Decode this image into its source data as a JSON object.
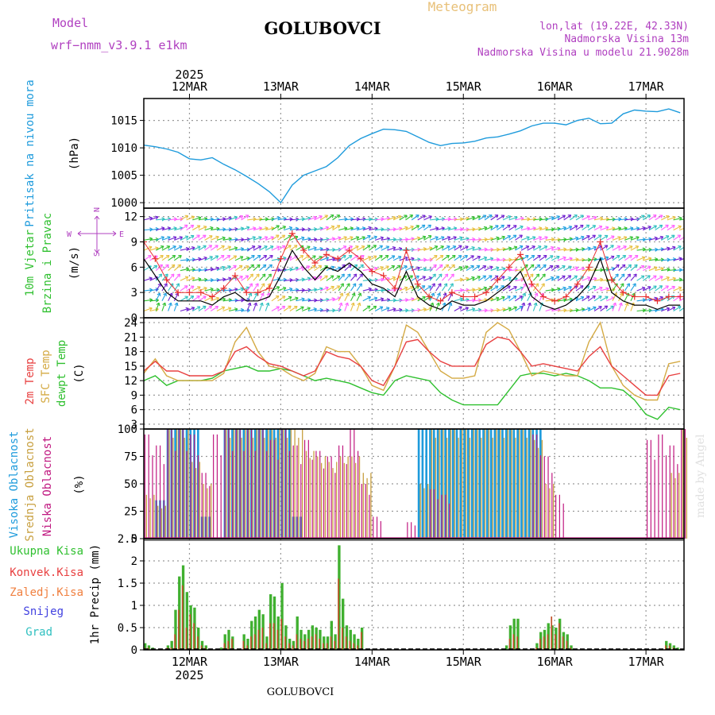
{
  "header": {
    "model_label": "Model",
    "model_name": "wrf−nmm_v3.9.1  e1km",
    "station": "GOLUBOVCI",
    "product": "Meteogram",
    "lonlat": "lon,lat (19.22E, 42.33N)",
    "altitude": "Nadmorska Visina 13m",
    "model_altitude": "Nadmorska Visina u modelu 21.9028m",
    "footer_station": "GOLUBOVCI",
    "watermark": "made by Angel"
  },
  "colors": {
    "pressure": "#1e9bdc",
    "temp2m": "#e84040",
    "sfc": "#d4aa44",
    "dewpt": "#2ec02e",
    "high_cloud": "#1e9bdc",
    "mid_cloud": "#c8a040",
    "low_cloud": "#c01880",
    "total_precip": "#40b030",
    "conv_precip": "#c05028",
    "wind_speed": "#000000",
    "wind_gust": "#e83030"
  },
  "chart_data": [
    {
      "type": "line",
      "id": "pressure",
      "ylabel_lines": [
        "Pritisak na nivou mora",
        "(hPa)"
      ],
      "yticks": [
        "1000",
        "1005",
        "1010",
        "1015"
      ],
      "ylim": [
        999,
        1019
      ],
      "xlim": [
        0,
        142
      ],
      "x_top_labels": [
        "12MAR",
        "13MAR",
        "14MAR",
        "15MAR",
        "16MAR",
        "17MAR"
      ],
      "x_top_year": "2025",
      "x_day_positions": [
        12,
        36,
        60,
        84,
        108,
        132
      ],
      "x": [
        0,
        3,
        6,
        9,
        12,
        15,
        18,
        21,
        24,
        27,
        30,
        33,
        36,
        39,
        42,
        45,
        48,
        51,
        54,
        57,
        60,
        63,
        66,
        69,
        72,
        75,
        78,
        81,
        84,
        87,
        90,
        93,
        96,
        99,
        102,
        105,
        108,
        111,
        114,
        117,
        120,
        123,
        126,
        129,
        132,
        135,
        138,
        141
      ],
      "series": [
        {
          "name": "",
          "values": [
            1010.5,
            1010.2,
            1009.8,
            1009.2,
            1008.0,
            1007.8,
            1008.2,
            1007.0,
            1006.0,
            1004.8,
            1003.5,
            1002.0,
            1000.0,
            1003.2,
            1005.0,
            1005.8,
            1006.6,
            1008.2,
            1010.4,
            1011.7,
            1012.6,
            1013.4,
            1013.3,
            1013.0,
            1012.0,
            1011.0,
            1010.4,
            1010.8,
            1010.9,
            1011.2,
            1011.8,
            1012.0,
            1012.5,
            1013.1,
            1014.0,
            1014.5,
            1014.5,
            1014.2,
            1015.0,
            1015.4,
            1014.4,
            1014.5,
            1016.2,
            1016.9,
            1016.7,
            1016.6,
            1017.1,
            1016.4
          ]
        }
      ]
    },
    {
      "type": "line",
      "id": "wind",
      "ylabel_lines": [
        "10m Vjetar",
        "Brzina i Pravac",
        "(m/s)"
      ],
      "compass": {
        "n": "N",
        "s": "S",
        "w": "W",
        "e": "E"
      },
      "yticks": [
        "0",
        "3",
        "6",
        "9",
        "12"
      ],
      "ylim": [
        0,
        13
      ],
      "xlim": [
        0,
        142
      ],
      "x": [
        0,
        3,
        6,
        9,
        12,
        15,
        18,
        21,
        24,
        27,
        30,
        33,
        36,
        39,
        42,
        45,
        48,
        51,
        54,
        57,
        60,
        63,
        66,
        69,
        72,
        75,
        78,
        81,
        84,
        87,
        90,
        93,
        96,
        99,
        102,
        105,
        108,
        111,
        114,
        117,
        120,
        123,
        126,
        129,
        132,
        135,
        138,
        141
      ],
      "series": [
        {
          "name": "",
          "values": [
            7.0,
            5.0,
            3.0,
            2.0,
            2.0,
            2.0,
            1.5,
            2.5,
            3.0,
            2.0,
            2.0,
            2.5,
            5.0,
            8.0,
            6.0,
            4.5,
            6.0,
            5.5,
            6.5,
            5.5,
            4.0,
            3.5,
            2.5,
            5.5,
            2.5,
            1.5,
            1.0,
            2.0,
            1.5,
            1.5,
            2.0,
            3.0,
            4.0,
            5.5,
            2.5,
            1.5,
            1.0,
            1.5,
            2.5,
            4.0,
            7.0,
            3.0,
            2.0,
            1.5,
            1.5,
            1.0,
            1.5,
            1.5
          ]
        },
        {
          "name": "",
          "values": [
            9.0,
            7.0,
            4.5,
            3.0,
            3.0,
            3.0,
            2.5,
            3.5,
            5.0,
            3.0,
            3.0,
            3.5,
            7.0,
            10.0,
            8.0,
            6.5,
            7.5,
            7.0,
            8.0,
            7.0,
            5.5,
            5.0,
            3.5,
            8.0,
            4.0,
            2.5,
            2.0,
            3.0,
            2.5,
            2.5,
            3.0,
            4.5,
            6.0,
            7.5,
            4.0,
            2.5,
            2.0,
            2.5,
            4.0,
            6.0,
            9.0,
            4.5,
            3.0,
            2.5,
            2.5,
            2.0,
            2.5,
            2.5
          ]
        }
      ],
      "arrow_colors": [
        "#e8c040",
        "#30c030",
        "#20a0e0",
        "#7020d0",
        "#30c0c0",
        "#ff60ff"
      ]
    },
    {
      "type": "line",
      "id": "temperature",
      "ylabel_lines": [
        "2m Temp",
        "SFC Temp",
        "dewpt Temp",
        "(C)"
      ],
      "yticks": [
        "3",
        "6",
        "9",
        "12",
        "15",
        "18",
        "21",
        "24"
      ],
      "ylim": [
        2,
        25
      ],
      "xlim": [
        0,
        142
      ],
      "x": [
        0,
        3,
        6,
        9,
        12,
        15,
        18,
        21,
        24,
        27,
        30,
        33,
        36,
        39,
        42,
        45,
        48,
        51,
        54,
        57,
        60,
        63,
        66,
        69,
        72,
        75,
        78,
        81,
        84,
        87,
        90,
        93,
        96,
        99,
        102,
        105,
        108,
        111,
        114,
        117,
        120,
        123,
        126,
        129,
        132,
        135,
        138,
        141
      ],
      "series": [
        {
          "name": "2m Temp",
          "values": [
            14.0,
            16.0,
            14.0,
            14.0,
            13.0,
            13.0,
            13.0,
            14.0,
            18.0,
            19.0,
            17.0,
            15.5,
            15.0,
            14.0,
            13.0,
            14.0,
            18.0,
            17.0,
            16.5,
            15.0,
            12.0,
            11.0,
            15.0,
            20.0,
            20.5,
            18.0,
            16.0,
            15.0,
            15.0,
            15.0,
            19.5,
            21.0,
            20.5,
            18.0,
            15.0,
            15.5,
            15.0,
            14.5,
            14.0,
            17.0,
            19.0,
            15.0,
            13.0,
            11.0,
            9.0,
            9.0,
            13.0,
            13.5
          ]
        },
        {
          "name": "SFC Temp",
          "values": [
            13.5,
            16.5,
            13.0,
            12.0,
            12.0,
            12.0,
            12.0,
            13.5,
            20.0,
            23.0,
            18.0,
            15.0,
            14.5,
            13.0,
            12.0,
            13.5,
            19.0,
            18.0,
            18.0,
            15.0,
            11.0,
            10.0,
            15.0,
            23.5,
            22.0,
            18.0,
            14.0,
            12.5,
            12.5,
            13.0,
            22.0,
            24.0,
            22.5,
            18.0,
            13.0,
            14.0,
            13.5,
            13.0,
            13.0,
            20.0,
            24.0,
            15.0,
            11.0,
            9.0,
            8.0,
            8.0,
            15.5,
            16.0
          ]
        },
        {
          "name": "dewpt Temp",
          "values": [
            12.0,
            13.0,
            11.0,
            12.0,
            12.0,
            12.0,
            12.5,
            14.0,
            14.5,
            15.0,
            14.0,
            14.0,
            14.5,
            14.0,
            13.0,
            12.0,
            12.5,
            12.0,
            11.5,
            10.5,
            9.5,
            9.0,
            12.0,
            13.0,
            12.5,
            12.0,
            9.5,
            8.0,
            7.0,
            7.0,
            7.0,
            7.0,
            10.0,
            13.0,
            13.5,
            13.5,
            13.0,
            13.5,
            13.0,
            12.0,
            10.5,
            10.5,
            10.0,
            8.0,
            5.0,
            4.0,
            6.5,
            6.0
          ]
        }
      ]
    },
    {
      "type": "bar",
      "id": "clouds",
      "ylabel_lines": [
        "Visoka Oblacnost",
        "Srednja Oblacnost",
        "Niska Oblacnost",
        "(%)"
      ],
      "yticks": [
        "0",
        "25",
        "50",
        "75",
        "100"
      ],
      "ylim": [
        0,
        100
      ],
      "xlim": [
        0,
        142
      ],
      "x": [
        0,
        3,
        6,
        9,
        12,
        15,
        18,
        21,
        24,
        27,
        30,
        33,
        36,
        39,
        42,
        45,
        48,
        51,
        54,
        57,
        60,
        63,
        66,
        69,
        72,
        75,
        78,
        81,
        84,
        87,
        90,
        93,
        96,
        99,
        102,
        105,
        108,
        111,
        114,
        117,
        120,
        123,
        126,
        129,
        132,
        135,
        138,
        141
      ],
      "series": [
        {
          "name": "Visoka Oblacnost",
          "values": [
            0,
            35,
            100,
            100,
            100,
            20,
            0,
            100,
            100,
            100,
            100,
            100,
            100,
            20,
            0,
            0,
            0,
            0,
            0,
            0,
            0,
            0,
            0,
            0,
            100,
            100,
            100,
            100,
            100,
            100,
            100,
            100,
            100,
            100,
            100,
            0,
            0,
            0,
            0,
            0,
            0,
            0,
            0,
            0,
            0,
            0,
            0,
            0
          ]
        },
        {
          "name": "Srednja Oblacnost",
          "values": [
            40,
            30,
            100,
            100,
            70,
            50,
            0,
            100,
            100,
            100,
            100,
            100,
            100,
            100,
            80,
            75,
            70,
            75,
            75,
            60,
            0,
            0,
            0,
            0,
            50,
            100,
            100,
            100,
            100,
            100,
            100,
            100,
            100,
            100,
            90,
            50,
            0,
            0,
            0,
            0,
            0,
            0,
            0,
            0,
            0,
            0,
            60,
            100
          ]
        },
        {
          "name": "Niska Oblacnost",
          "values": [
            95,
            85,
            100,
            100,
            95,
            60,
            95,
            100,
            100,
            100,
            100,
            90,
            100,
            85,
            90,
            80,
            75,
            85,
            100,
            50,
            20,
            0,
            0,
            15,
            0,
            45,
            40,
            0,
            0,
            0,
            0,
            0,
            0,
            0,
            95,
            75,
            40,
            0,
            0,
            0,
            0,
            0,
            0,
            0,
            90,
            95,
            85,
            100
          ]
        }
      ]
    },
    {
      "type": "bar",
      "id": "precipitation",
      "ylabel_lines": [
        "Ukupna Kisa",
        "Konvek.Kisa",
        "Zaledj.Kisa",
        "Snijeg",
        "Grad"
      ],
      "ylabel_unit": "1hr Precip (mm)",
      "yticks": [
        "0",
        "0.5",
        "1",
        "1.5",
        "2",
        "2.5"
      ],
      "ylim": [
        0,
        2.5
      ],
      "xlim": [
        0,
        142
      ],
      "x_bottom_labels": [
        "12MAR",
        "13MAR",
        "14MAR",
        "15MAR",
        "16MAR",
        "17MAR"
      ],
      "x_bottom_year": "2025",
      "x": [
        0,
        1,
        2,
        6,
        7,
        8,
        9,
        10,
        11,
        12,
        13,
        14,
        15,
        16,
        20,
        21,
        22,
        23,
        26,
        27,
        28,
        29,
        30,
        31,
        32,
        33,
        34,
        35,
        36,
        37,
        38,
        39,
        40,
        41,
        42,
        43,
        44,
        45,
        46,
        47,
        48,
        49,
        50,
        51,
        52,
        53,
        54,
        55,
        56,
        57,
        95,
        96,
        97,
        98,
        103,
        104,
        105,
        106,
        107,
        108,
        109,
        110,
        111,
        112,
        137,
        138,
        139,
        140
      ],
      "series": [
        {
          "name": "Ukupna Kisa",
          "values": [
            0.15,
            0.1,
            0.05,
            0.1,
            0.2,
            0.9,
            1.65,
            1.9,
            1.3,
            1.0,
            0.95,
            0.5,
            0.2,
            0.1,
            0.05,
            0.35,
            0.45,
            0.3,
            0.35,
            0.25,
            0.65,
            0.75,
            0.9,
            0.8,
            0.3,
            1.25,
            1.2,
            0.75,
            1.5,
            0.55,
            0.25,
            0.2,
            0.75,
            0.45,
            0.35,
            0.45,
            0.55,
            0.5,
            0.45,
            0.3,
            0.3,
            0.65,
            0.35,
            2.35,
            1.15,
            0.55,
            0.45,
            0.35,
            0.25,
            0.5,
            0.1,
            0.55,
            0.7,
            0.7,
            0.15,
            0.4,
            0.45,
            0.6,
            0.55,
            0.5,
            0.7,
            0.4,
            0.35,
            0.1,
            0.2,
            0.15,
            0.1,
            0.05
          ]
        },
        {
          "name": "Konvek.Kisa",
          "values": [
            0.05,
            0.05,
            0,
            0.05,
            0.05,
            0.35,
            0.9,
            1.45,
            0.5,
            0.8,
            0.6,
            0.3,
            0.1,
            0.05,
            0,
            0.15,
            0.2,
            0.25,
            0.2,
            0.1,
            0.3,
            0.35,
            0.45,
            0.5,
            0.15,
            0.6,
            0.6,
            0.45,
            0.7,
            0.3,
            0.15,
            0.1,
            0.35,
            0.25,
            0.2,
            0.25,
            0.3,
            0.35,
            0.25,
            0.15,
            0.15,
            0.3,
            0.2,
            1.6,
            0.5,
            0.3,
            0.2,
            0.15,
            0.1,
            0.4,
            0,
            0.25,
            0.35,
            0.3,
            0.05,
            0.25,
            0.3,
            0.35,
            0.75,
            0.35,
            0.6,
            0.3,
            0.2,
            0.05,
            0.1,
            0.1,
            0.05,
            0
          ]
        }
      ]
    }
  ]
}
